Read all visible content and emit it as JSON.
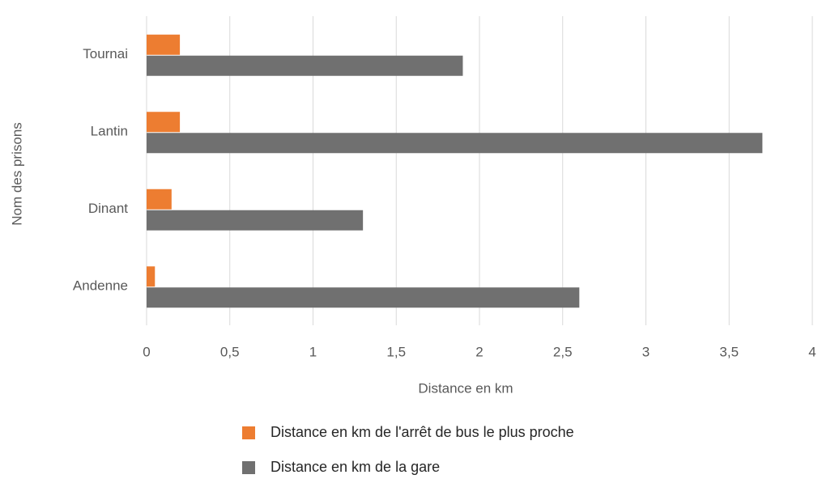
{
  "chart_data": {
    "type": "bar",
    "orientation": "horizontal",
    "x_label": "Distance en km",
    "y_label": "Nom des prisons",
    "categories": [
      "Tournai",
      "Lantin",
      "Dinant",
      "Andenne"
    ],
    "series": [
      {
        "name": "Distance en km de l'arrêt de bus le plus proche",
        "color": "#ed7d31",
        "values": [
          0.2,
          0.2,
          0.15,
          0.05
        ]
      },
      {
        "name": "Distance en km de la gare",
        "color": "#707070",
        "values": [
          1.9,
          3.7,
          1.3,
          2.6
        ]
      }
    ],
    "xlim": [
      0,
      4
    ],
    "xticks": [
      0,
      {
        "value": 0.5,
        "label": "0,5"
      },
      1,
      {
        "value": 1.5,
        "label": "1,5"
      },
      2,
      {
        "value": 2.5,
        "label": "2,5"
      },
      3,
      {
        "value": 3.5,
        "label": "3,5"
      },
      4
    ],
    "grid": true
  }
}
